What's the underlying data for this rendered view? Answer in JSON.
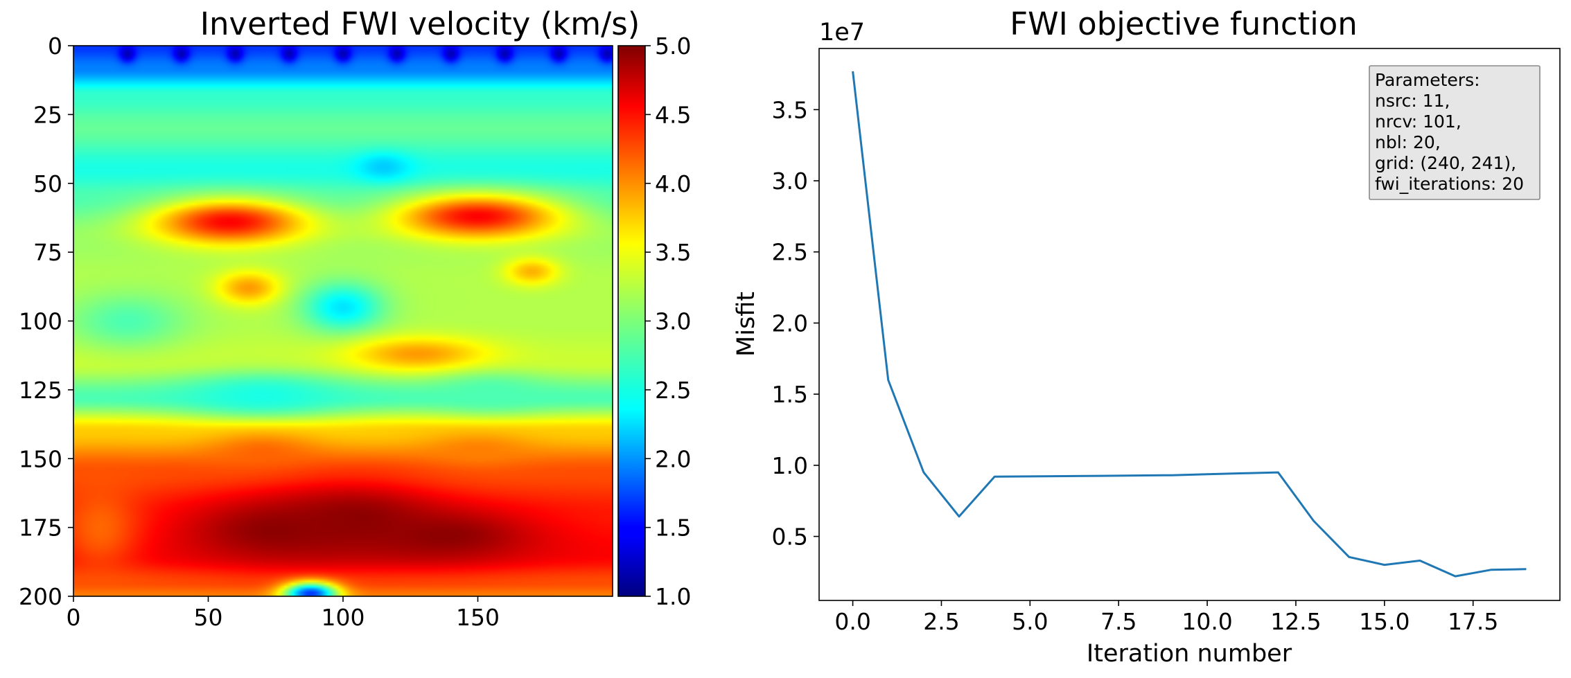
{
  "chart_data": [
    {
      "type": "heatmap",
      "title": "Inverted FWI velocity (km/s)",
      "xlim": [
        0,
        200
      ],
      "ylim": [
        200,
        0
      ],
      "x_ticks": [
        0,
        50,
        100,
        150
      ],
      "y_ticks": [
        0,
        25,
        50,
        75,
        100,
        125,
        150,
        175,
        200
      ],
      "colormap": "jet",
      "colorbar": {
        "min": 1.0,
        "max": 5.0,
        "ticks": [
          "5.0",
          "4.5",
          "4.0",
          "3.5",
          "3.0",
          "2.5",
          "2.0",
          "1.5",
          "1.0"
        ]
      },
      "background_velocity_profile": [
        {
          "depth": 0,
          "value": 1.7
        },
        {
          "depth": 8,
          "value": 2.0
        },
        {
          "depth": 18,
          "value": 2.7
        },
        {
          "depth": 30,
          "value": 2.9
        },
        {
          "depth": 45,
          "value": 2.6
        },
        {
          "depth": 55,
          "value": 2.8
        },
        {
          "depth": 70,
          "value": 3.1
        },
        {
          "depth": 85,
          "value": 3.2
        },
        {
          "depth": 100,
          "value": 3.2
        },
        {
          "depth": 115,
          "value": 3.3
        },
        {
          "depth": 128,
          "value": 2.8
        },
        {
          "depth": 140,
          "value": 3.7
        },
        {
          "depth": 155,
          "value": 4.2
        },
        {
          "depth": 170,
          "value": 4.4
        },
        {
          "depth": 185,
          "value": 4.5
        },
        {
          "depth": 195,
          "value": 4.2
        },
        {
          "depth": 200,
          "value": 4.0
        }
      ],
      "anomalies": [
        {
          "x": 58,
          "depth": 64,
          "rx": 28,
          "rz": 8,
          "value": 4.5
        },
        {
          "x": 150,
          "depth": 62,
          "rx": 30,
          "rz": 8,
          "value": 4.5
        },
        {
          "x": 65,
          "depth": 88,
          "rx": 12,
          "rz": 6,
          "value": 3.9
        },
        {
          "x": 170,
          "depth": 82,
          "rx": 10,
          "rz": 5,
          "value": 3.8
        },
        {
          "x": 100,
          "depth": 95,
          "rx": 15,
          "rz": 9,
          "value": 2.4
        },
        {
          "x": 20,
          "depth": 100,
          "rx": 22,
          "rz": 10,
          "value": 2.8
        },
        {
          "x": 115,
          "depth": 44,
          "rx": 10,
          "rz": 5,
          "value": 2.3
        },
        {
          "x": 128,
          "depth": 112,
          "rx": 25,
          "rz": 6,
          "value": 3.9
        },
        {
          "x": 70,
          "depth": 127,
          "rx": 30,
          "rz": 8,
          "value": 2.6
        },
        {
          "x": 155,
          "depth": 126,
          "rx": 20,
          "rz": 7,
          "value": 2.8
        },
        {
          "x": 70,
          "depth": 148,
          "rx": 20,
          "rz": 7,
          "value": 4.1
        },
        {
          "x": 150,
          "depth": 147,
          "rx": 20,
          "rz": 6,
          "value": 4.0
        },
        {
          "x": 75,
          "depth": 176,
          "rx": 35,
          "rz": 12,
          "value": 4.95
        },
        {
          "x": 138,
          "depth": 178,
          "rx": 34,
          "rz": 10,
          "value": 4.95
        },
        {
          "x": 105,
          "depth": 172,
          "rx": 30,
          "rz": 12,
          "value": 4.95
        },
        {
          "x": 88,
          "depth": 199,
          "rx": 10,
          "rz": 4,
          "value": 1.7
        },
        {
          "x": 10,
          "depth": 175,
          "rx": 14,
          "rz": 16,
          "value": 4.1
        }
      ],
      "surface_low_spots_x": [
        20,
        40,
        60,
        80,
        100,
        120,
        140,
        160,
        180,
        198
      ]
    },
    {
      "type": "line",
      "title": "FWI objective function",
      "xlabel": "Iteration number",
      "ylabel": "Misfit",
      "y_offset_label": "1e7",
      "xlim": [
        -0.95,
        19.95
      ],
      "ylim": [
        0.05,
        3.93
      ],
      "x_ticks": [
        "0.0",
        "2.5",
        "5.0",
        "7.5",
        "10.0",
        "12.5",
        "15.0",
        "17.5"
      ],
      "y_ticks": [
        "0.5",
        "1.0",
        "1.5",
        "2.0",
        "2.5",
        "3.0",
        "3.5"
      ],
      "line_color": "#1f77b4",
      "x": [
        0,
        1,
        2,
        3,
        4,
        5,
        6,
        7,
        8,
        9,
        10,
        11,
        12,
        13,
        14,
        15,
        16,
        17,
        18,
        19
      ],
      "y": [
        3.77,
        1.6,
        0.95,
        0.64,
        0.92,
        0.922,
        0.924,
        0.926,
        0.928,
        0.93,
        0.937,
        0.944,
        0.95,
        0.61,
        0.355,
        0.3,
        0.33,
        0.22,
        0.265,
        0.27
      ],
      "annotation": {
        "lines": [
          "Parameters:",
          "nsrc: 11,",
          "nrcv: 101,",
          "nbl: 20,",
          "grid: (240, 241),",
          "fwi_iterations: 20"
        ],
        "background": "#e6e6e6",
        "border": "#888888"
      }
    }
  ]
}
